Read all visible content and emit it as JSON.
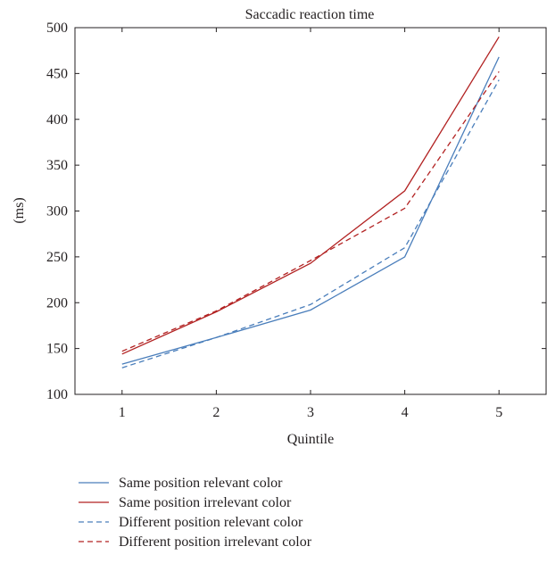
{
  "chart_data": {
    "type": "line",
    "title": "Saccadic reaction time",
    "xlabel": "Quintile",
    "ylabel": "(ms)",
    "x": [
      1,
      2,
      3,
      4,
      5
    ],
    "xlim": [
      0.5,
      5.5
    ],
    "ylim": [
      100,
      500
    ],
    "xticks": [
      "1",
      "2",
      "3",
      "4",
      "5"
    ],
    "yticks": [
      "100",
      "150",
      "200",
      "250",
      "300",
      "350",
      "400",
      "450",
      "500"
    ],
    "grid": false,
    "legend_position": "below",
    "series": [
      {
        "name": "Same position relevant color",
        "values": [
          133,
          162,
          192,
          250,
          468
        ],
        "color": "#4a7ebb",
        "dash": "solid"
      },
      {
        "name": "Same position irrelevant color",
        "values": [
          144,
          190,
          243,
          322,
          490
        ],
        "color": "#b22222",
        "dash": "solid"
      },
      {
        "name": "Different position relevant color",
        "values": [
          129,
          162,
          198,
          260,
          443
        ],
        "color": "#4a7ebb",
        "dash": "dashed"
      },
      {
        "name": "Different position irrelevant color",
        "values": [
          147,
          191,
          246,
          303,
          452
        ],
        "color": "#b22222",
        "dash": "dashed"
      }
    ]
  }
}
